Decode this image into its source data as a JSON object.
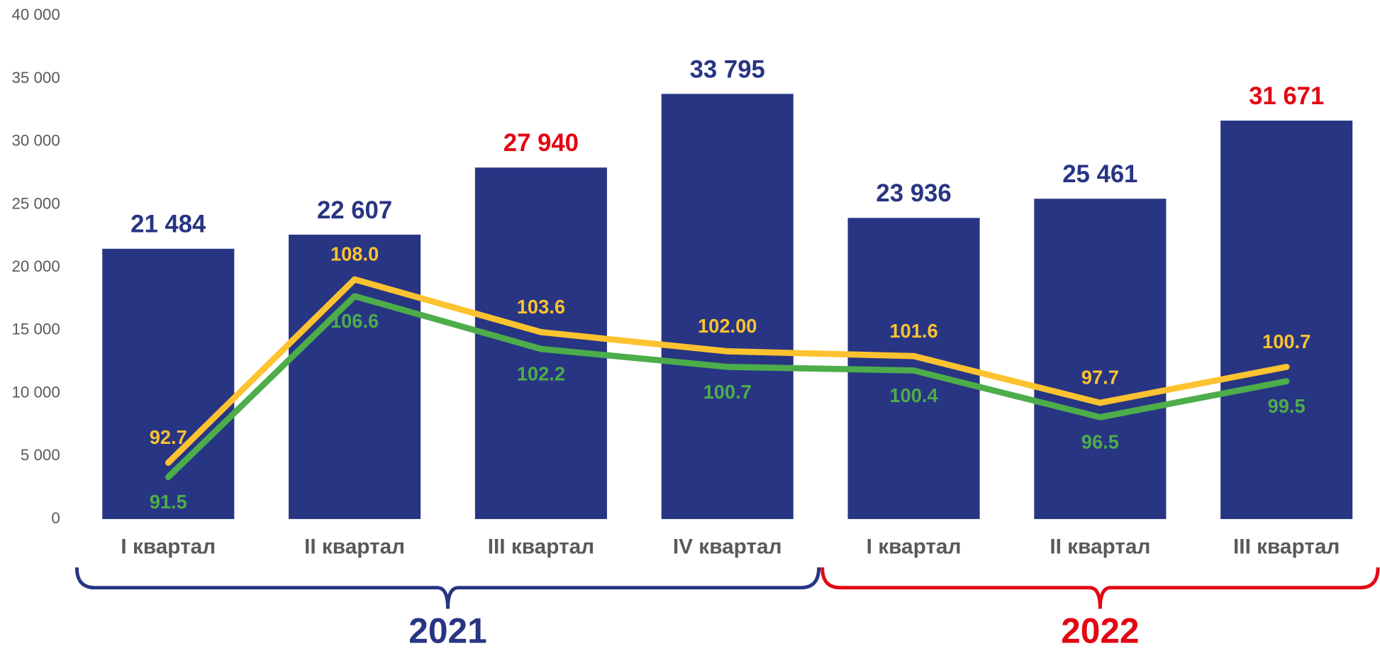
{
  "chart_data": {
    "type": "bar_line",
    "categories": [
      "I квартал",
      "II квартал",
      "III квартал",
      "IV квартал",
      "I квартал",
      "II квартал",
      "III квартал"
    ],
    "values": [
      21484,
      22607,
      27940,
      33795,
      23936,
      25461,
      31671
    ],
    "value_labels": [
      "21 484",
      "22 607",
      "27 940",
      "33 795",
      "23 936",
      "25 461",
      "31 671"
    ],
    "color": "#283583",
    "label_colors": [
      "#283583",
      "#283583",
      "#e30613",
      "#283583",
      "#283583",
      "#283583",
      "#e30613"
    ],
    "ylim": [
      0,
      40000
    ],
    "yticks": [
      0,
      {
        "value": 5000,
        "label": "5 000"
      },
      {
        "value": 10000,
        "label": "10 000"
      },
      {
        "value": 15000,
        "label": "15 000"
      },
      {
        "value": 20000,
        "label": "20 000"
      },
      {
        "value": 25000,
        "label": "25 000"
      },
      {
        "value": 30000,
        "label": "30 000"
      },
      {
        "value": 35000,
        "label": "35 000"
      },
      {
        "value": 40000,
        "label": "40 000"
      }
    ],
    "y2lim": [
      88,
      130
    ],
    "series": [
      {
        "color": "#fdc22f",
        "axis": "y2",
        "values": [
          92.7,
          108.0,
          103.6,
          102,
          101.6,
          97.7,
          100.7
        ],
        "value_labels": [
          "92.7",
          "108.0",
          "103.6",
          "102.00",
          "101.6",
          "97.7",
          "100.7"
        ]
      },
      {
        "color": "#4cad4a",
        "axis": "y2",
        "values": [
          91.5,
          106.6,
          102.2,
          100.7,
          100.4,
          96.5,
          99.5
        ],
        "value_labels": [
          "91.5",
          "106.6",
          "102.2",
          "100.7",
          "100.4",
          "96.5",
          "99.5"
        ]
      }
    ],
    "groups": [
      {
        "label": "2021",
        "color": "#283583",
        "start": 0,
        "end": 3
      },
      {
        "label": "2022",
        "color": "#e30613",
        "start": 4,
        "end": 6
      }
    ]
  }
}
